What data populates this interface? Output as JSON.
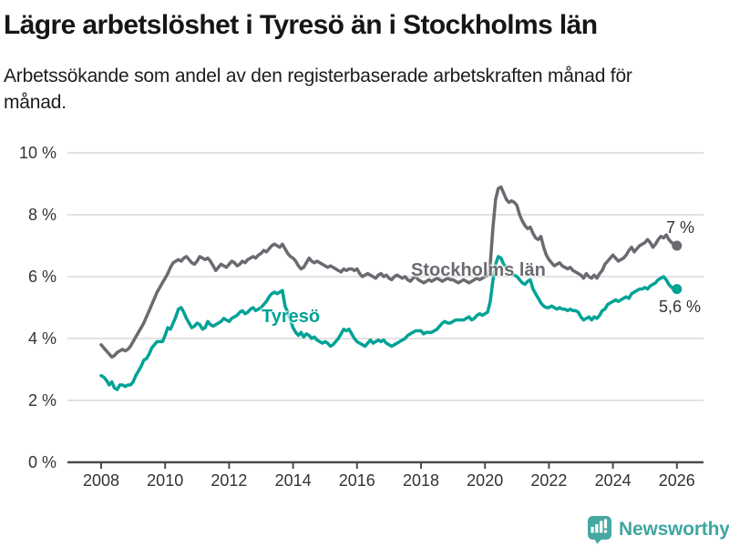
{
  "chart_data": {
    "type": "line",
    "title": "Lägre arbetslöshet i Tyresö än i Stockholms län",
    "subtitle": "Arbetssökande som andel av den registerbaserade arbetskraften månad för månad.",
    "x_start": "2008-01",
    "x_end": "2026-01",
    "x_step_months": 1,
    "xticks": [
      2008,
      2010,
      2012,
      2014,
      2016,
      2018,
      2020,
      2022,
      2024,
      2026
    ],
    "ylim": [
      0,
      10
    ],
    "yticks": [
      {
        "value": 0,
        "label": "0 %"
      },
      {
        "value": 2,
        "label": "2 %"
      },
      {
        "value": 4,
        "label": "4 %"
      },
      {
        "value": 6,
        "label": "6 %"
      },
      {
        "value": 8,
        "label": "8 %"
      },
      {
        "value": 10,
        "label": "10 %"
      }
    ],
    "grid": "horizontal-light",
    "legend_position": "inline-labels",
    "series": [
      {
        "name": "Stockholms län",
        "color": "#696b70",
        "end_label": "7 %",
        "end_value": 7.0,
        "values": [
          3.8,
          3.7,
          3.6,
          3.5,
          3.4,
          3.45,
          3.55,
          3.6,
          3.65,
          3.6,
          3.65,
          3.75,
          3.9,
          4.05,
          4.2,
          4.35,
          4.5,
          4.7,
          4.9,
          5.1,
          5.3,
          5.5,
          5.65,
          5.8,
          5.95,
          6.1,
          6.3,
          6.45,
          6.5,
          6.55,
          6.5,
          6.6,
          6.65,
          6.55,
          6.45,
          6.4,
          6.5,
          6.65,
          6.6,
          6.55,
          6.6,
          6.5,
          6.35,
          6.2,
          6.3,
          6.4,
          6.35,
          6.3,
          6.4,
          6.5,
          6.45,
          6.35,
          6.4,
          6.5,
          6.45,
          6.55,
          6.6,
          6.65,
          6.6,
          6.7,
          6.75,
          6.85,
          6.8,
          6.9,
          7.0,
          7.05,
          7.0,
          6.95,
          7.05,
          6.9,
          6.75,
          6.65,
          6.6,
          6.5,
          6.35,
          6.25,
          6.3,
          6.45,
          6.6,
          6.5,
          6.45,
          6.5,
          6.45,
          6.4,
          6.35,
          6.3,
          6.35,
          6.3,
          6.25,
          6.2,
          6.15,
          6.25,
          6.2,
          6.25,
          6.25,
          6.2,
          6.25,
          6.1,
          6.0,
          6.05,
          6.1,
          6.05,
          6.0,
          5.95,
          6.05,
          6.1,
          6.0,
          6.05,
          5.95,
          5.9,
          6.0,
          6.05,
          6.0,
          5.95,
          6.0,
          5.9,
          5.85,
          5.95,
          6.0,
          5.9,
          5.85,
          5.8,
          5.85,
          5.9,
          5.85,
          5.9,
          5.95,
          5.9,
          5.85,
          5.9,
          5.95,
          5.9,
          5.9,
          5.85,
          5.8,
          5.85,
          5.9,
          5.85,
          5.8,
          5.85,
          5.9,
          5.95,
          5.9,
          5.95,
          6.0,
          6.05,
          6.4,
          7.6,
          8.5,
          8.85,
          8.9,
          8.7,
          8.5,
          8.4,
          8.45,
          8.4,
          8.3,
          8.0,
          7.8,
          7.65,
          7.55,
          7.6,
          7.4,
          7.25,
          7.2,
          7.3,
          6.95,
          6.7,
          6.55,
          6.45,
          6.35,
          6.4,
          6.45,
          6.35,
          6.3,
          6.25,
          6.3,
          6.2,
          6.15,
          6.1,
          6.05,
          5.95,
          6.1,
          6.0,
          5.95,
          6.05,
          5.95,
          6.1,
          6.2,
          6.4,
          6.5,
          6.6,
          6.7,
          6.6,
          6.5,
          6.55,
          6.6,
          6.7,
          6.85,
          6.95,
          6.8,
          6.9,
          7.0,
          7.05,
          7.1,
          7.2,
          7.1,
          6.95,
          7.05,
          7.2,
          7.3,
          7.25,
          7.35,
          7.2,
          7.1,
          7.05,
          7.0
        ]
      },
      {
        "name": "Tyresö",
        "color": "#00a296",
        "end_label": "5,6 %",
        "end_value": 5.6,
        "values": [
          2.8,
          2.75,
          2.65,
          2.5,
          2.6,
          2.4,
          2.35,
          2.5,
          2.5,
          2.45,
          2.5,
          2.5,
          2.6,
          2.8,
          2.95,
          3.1,
          3.3,
          3.35,
          3.5,
          3.7,
          3.8,
          3.9,
          3.9,
          3.9,
          4.1,
          4.35,
          4.3,
          4.5,
          4.7,
          4.95,
          5.0,
          4.85,
          4.65,
          4.5,
          4.35,
          4.4,
          4.5,
          4.45,
          4.3,
          4.35,
          4.55,
          4.45,
          4.4,
          4.45,
          4.5,
          4.55,
          4.65,
          4.6,
          4.55,
          4.65,
          4.7,
          4.75,
          4.85,
          4.9,
          4.8,
          4.85,
          4.95,
          5.0,
          4.9,
          4.95,
          5.0,
          5.1,
          5.2,
          5.35,
          5.45,
          5.5,
          5.45,
          5.5,
          5.55,
          5.05,
          4.85,
          4.6,
          4.35,
          4.2,
          4.1,
          4.2,
          4.05,
          4.15,
          4.1,
          4.0,
          4.05,
          3.95,
          3.9,
          3.85,
          3.9,
          3.85,
          3.75,
          3.8,
          3.9,
          4.0,
          4.15,
          4.3,
          4.25,
          4.3,
          4.15,
          4.0,
          3.9,
          3.85,
          3.8,
          3.75,
          3.85,
          3.95,
          3.85,
          3.9,
          3.95,
          3.9,
          3.95,
          3.85,
          3.8,
          3.75,
          3.8,
          3.85,
          3.9,
          3.95,
          4.0,
          4.1,
          4.15,
          4.2,
          4.25,
          4.25,
          4.25,
          4.15,
          4.2,
          4.2,
          4.2,
          4.25,
          4.3,
          4.4,
          4.5,
          4.55,
          4.5,
          4.5,
          4.55,
          4.6,
          4.6,
          4.6,
          4.6,
          4.65,
          4.7,
          4.6,
          4.65,
          4.75,
          4.8,
          4.75,
          4.8,
          4.85,
          5.2,
          5.9,
          6.4,
          6.65,
          6.6,
          6.4,
          6.3,
          6.15,
          6.1,
          6.05,
          6.0,
          5.9,
          5.8,
          5.75,
          5.85,
          5.9,
          5.6,
          5.45,
          5.3,
          5.15,
          5.05,
          5.0,
          5.0,
          5.05,
          5.0,
          4.95,
          5.0,
          4.95,
          4.95,
          4.9,
          4.95,
          4.9,
          4.9,
          4.85,
          4.7,
          4.6,
          4.65,
          4.7,
          4.6,
          4.7,
          4.65,
          4.75,
          4.9,
          4.95,
          5.1,
          5.15,
          5.2,
          5.25,
          5.2,
          5.25,
          5.3,
          5.35,
          5.3,
          5.45,
          5.5,
          5.55,
          5.6,
          5.6,
          5.65,
          5.6,
          5.7,
          5.75,
          5.8,
          5.9,
          5.95,
          6.0,
          5.9,
          5.75,
          5.65,
          5.6,
          5.6
        ]
      }
    ]
  },
  "footer": {
    "brand": "Newsworthy",
    "brand_color": "#3fa6a0",
    "icon_color": "#47a8a2"
  }
}
